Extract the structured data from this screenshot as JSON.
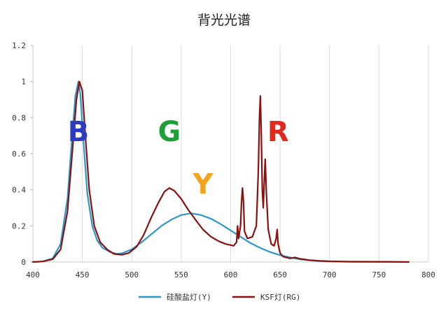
{
  "chart_data": {
    "type": "line",
    "title": "背光光谱",
    "xlabel": "",
    "ylabel": "",
    "xlim": [
      400,
      800
    ],
    "ylim": [
      0,
      1.2
    ],
    "x_ticks": [
      "400",
      "450",
      "500",
      "550",
      "600",
      "650",
      "700",
      "750",
      "800"
    ],
    "y_ticks": [
      "0",
      "0.2",
      "0.4",
      "0.6",
      "0.8",
      "1",
      "1.2"
    ],
    "grid": "vertical",
    "legend_position": "bottom",
    "series": [
      {
        "name": "硅酸盐灯(Y)",
        "color": "#2e97c9",
        "points": [
          [
            400,
            0
          ],
          [
            410,
            0.003
          ],
          [
            420,
            0.02
          ],
          [
            428,
            0.1
          ],
          [
            435,
            0.35
          ],
          [
            440,
            0.72
          ],
          [
            443,
            0.92
          ],
          [
            446,
            1.0
          ],
          [
            448,
            0.93
          ],
          [
            451,
            0.68
          ],
          [
            455,
            0.38
          ],
          [
            460,
            0.2
          ],
          [
            465,
            0.12
          ],
          [
            470,
            0.08
          ],
          [
            478,
            0.055
          ],
          [
            485,
            0.045
          ],
          [
            490,
            0.048
          ],
          [
            500,
            0.07
          ],
          [
            510,
            0.11
          ],
          [
            520,
            0.155
          ],
          [
            530,
            0.2
          ],
          [
            540,
            0.235
          ],
          [
            550,
            0.26
          ],
          [
            560,
            0.27
          ],
          [
            570,
            0.26
          ],
          [
            580,
            0.24
          ],
          [
            590,
            0.21
          ],
          [
            600,
            0.175
          ],
          [
            610,
            0.14
          ],
          [
            620,
            0.105
          ],
          [
            630,
            0.078
          ],
          [
            640,
            0.055
          ],
          [
            650,
            0.038
          ],
          [
            660,
            0.025
          ],
          [
            670,
            0.015
          ],
          [
            680,
            0.009
          ],
          [
            690,
            0.005
          ],
          [
            700,
            0.003
          ],
          [
            720,
            0.001
          ],
          [
            780,
            0
          ]
        ]
      },
      {
        "name": "KSF灯(RG)",
        "color": "#8b1010",
        "points": [
          [
            400,
            0
          ],
          [
            410,
            0.003
          ],
          [
            420,
            0.015
          ],
          [
            428,
            0.07
          ],
          [
            435,
            0.28
          ],
          [
            440,
            0.62
          ],
          [
            444,
            0.9
          ],
          [
            447,
            1.0
          ],
          [
            450,
            0.95
          ],
          [
            453,
            0.7
          ],
          [
            457,
            0.4
          ],
          [
            462,
            0.2
          ],
          [
            468,
            0.11
          ],
          [
            475,
            0.07
          ],
          [
            482,
            0.045
          ],
          [
            490,
            0.04
          ],
          [
            497,
            0.05
          ],
          [
            505,
            0.085
          ],
          [
            512,
            0.15
          ],
          [
            520,
            0.25
          ],
          [
            527,
            0.33
          ],
          [
            533,
            0.39
          ],
          [
            538,
            0.41
          ],
          [
            543,
            0.395
          ],
          [
            550,
            0.35
          ],
          [
            557,
            0.29
          ],
          [
            565,
            0.23
          ],
          [
            572,
            0.18
          ],
          [
            580,
            0.14
          ],
          [
            588,
            0.115
          ],
          [
            595,
            0.1
          ],
          [
            603,
            0.09
          ],
          [
            606,
            0.11
          ],
          [
            607,
            0.2
          ],
          [
            608,
            0.13
          ],
          [
            610,
            0.2
          ],
          [
            611,
            0.33
          ],
          [
            612,
            0.41
          ],
          [
            613,
            0.33
          ],
          [
            614,
            0.17
          ],
          [
            617,
            0.13
          ],
          [
            622,
            0.14
          ],
          [
            626,
            0.2
          ],
          [
            628,
            0.5
          ],
          [
            629,
            0.78
          ],
          [
            630,
            0.92
          ],
          [
            631,
            0.7
          ],
          [
            632,
            0.4
          ],
          [
            633,
            0.3
          ],
          [
            634,
            0.45
          ],
          [
            635,
            0.57
          ],
          [
            636,
            0.4
          ],
          [
            638,
            0.18
          ],
          [
            641,
            0.1
          ],
          [
            644,
            0.09
          ],
          [
            646,
            0.13
          ],
          [
            647,
            0.18
          ],
          [
            648,
            0.1
          ],
          [
            650,
            0.05
          ],
          [
            653,
            0.03
          ],
          [
            660,
            0.02
          ],
          [
            665,
            0.025
          ],
          [
            670,
            0.018
          ],
          [
            680,
            0.01
          ],
          [
            690,
            0.006
          ],
          [
            700,
            0.004
          ],
          [
            720,
            0.002
          ],
          [
            760,
            0.001
          ],
          [
            780,
            0
          ]
        ]
      }
    ],
    "annotations": [
      {
        "text": "B",
        "x": 446,
        "y": 0.67,
        "color": "#2a3cc4"
      },
      {
        "text": "G",
        "x": 538,
        "y": 0.67,
        "color": "#1f9e3a"
      },
      {
        "text": "Y",
        "x": 572,
        "y": 0.38,
        "color": "#f4a31a"
      },
      {
        "text": "R",
        "x": 648,
        "y": 0.67,
        "color": "#e02a1e"
      }
    ]
  }
}
